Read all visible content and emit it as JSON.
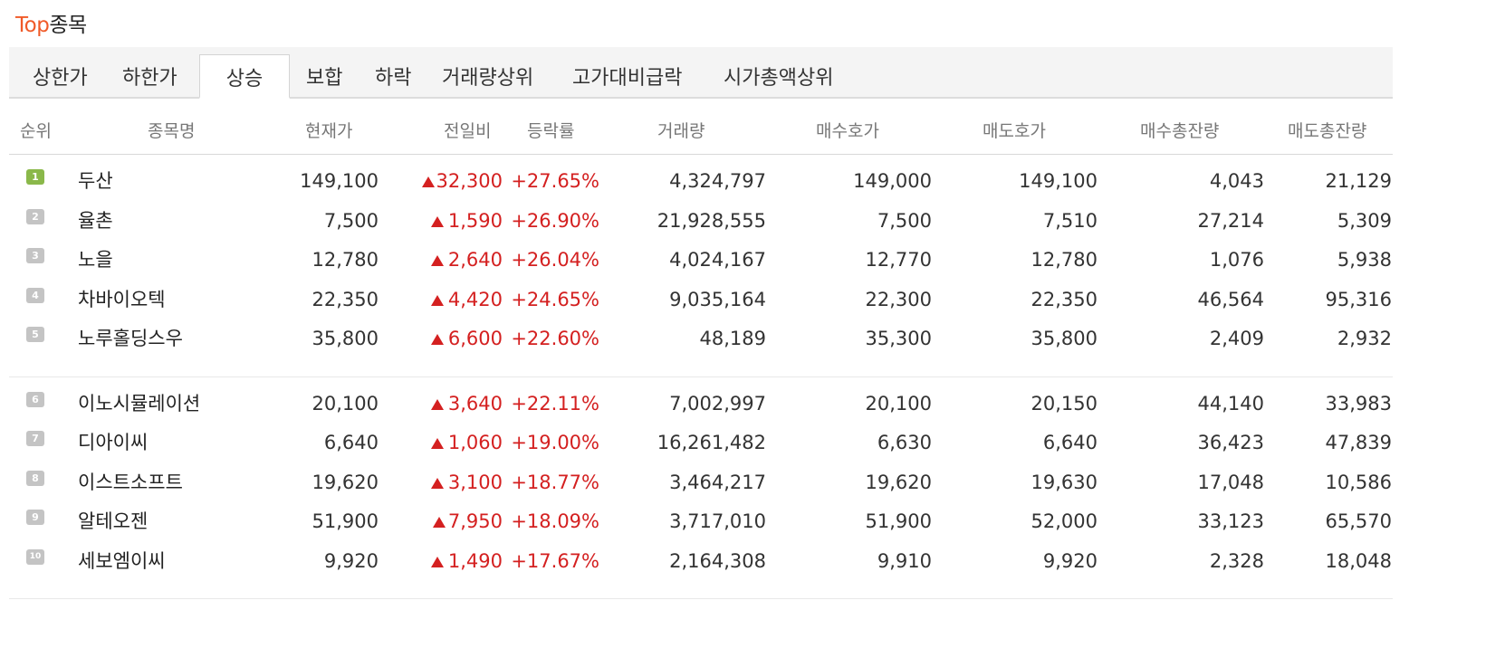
{
  "title": {
    "accent": "Top",
    "rest": "종목"
  },
  "tabs": [
    {
      "label": "상한가",
      "active": false
    },
    {
      "label": "하한가",
      "active": false
    },
    {
      "label": "상승",
      "active": true
    },
    {
      "label": "보합",
      "active": false
    },
    {
      "label": "하락",
      "active": false
    },
    {
      "label": "거래량상위",
      "active": false
    },
    {
      "label": "고가대비급락",
      "active": false
    },
    {
      "label": "시가총액상위",
      "active": false
    }
  ],
  "columns": {
    "rank": "순위",
    "name": "종목명",
    "price": "현재가",
    "change": "전일비",
    "rate": "등락률",
    "volume": "거래량",
    "bid": "매수호가",
    "ask": "매도호가",
    "bid_total": "매수총잔량",
    "ask_total": "매도총잔량"
  },
  "colors": {
    "accent": "#f05a28",
    "up": "#d42020",
    "rank1_badge": "#8ab84a",
    "rank_badge": "#c4c4c4"
  },
  "rows": [
    {
      "rank": "1",
      "name": "두산",
      "price": "149,100",
      "change": "32,300",
      "rate": "+27.65%",
      "volume": "4,324,797",
      "bid": "149,000",
      "ask": "149,100",
      "bid_total": "4,043",
      "ask_total": "21,129"
    },
    {
      "rank": "2",
      "name": "율촌",
      "price": "7,500",
      "change": "1,590",
      "rate": "+26.90%",
      "volume": "21,928,555",
      "bid": "7,500",
      "ask": "7,510",
      "bid_total": "27,214",
      "ask_total": "5,309"
    },
    {
      "rank": "3",
      "name": "노을",
      "price": "12,780",
      "change": "2,640",
      "rate": "+26.04%",
      "volume": "4,024,167",
      "bid": "12,770",
      "ask": "12,780",
      "bid_total": "1,076",
      "ask_total": "5,938"
    },
    {
      "rank": "4",
      "name": "차바이오텍",
      "price": "22,350",
      "change": "4,420",
      "rate": "+24.65%",
      "volume": "9,035,164",
      "bid": "22,300",
      "ask": "22,350",
      "bid_total": "46,564",
      "ask_total": "95,316"
    },
    {
      "rank": "5",
      "name": "노루홀딩스우",
      "price": "35,800",
      "change": "6,600",
      "rate": "+22.60%",
      "volume": "48,189",
      "bid": "35,300",
      "ask": "35,800",
      "bid_total": "2,409",
      "ask_total": "2,932"
    },
    {
      "rank": "6",
      "name": "이노시뮬레이션",
      "price": "20,100",
      "change": "3,640",
      "rate": "+22.11%",
      "volume": "7,002,997",
      "bid": "20,100",
      "ask": "20,150",
      "bid_total": "44,140",
      "ask_total": "33,983"
    },
    {
      "rank": "7",
      "name": "디아이씨",
      "price": "6,640",
      "change": "1,060",
      "rate": "+19.00%",
      "volume": "16,261,482",
      "bid": "6,630",
      "ask": "6,640",
      "bid_total": "36,423",
      "ask_total": "47,839"
    },
    {
      "rank": "8",
      "name": "이스트소프트",
      "price": "19,620",
      "change": "3,100",
      "rate": "+18.77%",
      "volume": "3,464,217",
      "bid": "19,620",
      "ask": "19,630",
      "bid_total": "17,048",
      "ask_total": "10,586"
    },
    {
      "rank": "9",
      "name": "알테오젠",
      "price": "51,900",
      "change": "7,950",
      "rate": "+18.09%",
      "volume": "3,717,010",
      "bid": "51,900",
      "ask": "52,000",
      "bid_total": "33,123",
      "ask_total": "65,570"
    },
    {
      "rank": "10",
      "name": "세보엠이씨",
      "price": "9,920",
      "change": "1,490",
      "rate": "+17.67%",
      "volume": "2,164,308",
      "bid": "9,910",
      "ask": "9,920",
      "bid_total": "2,328",
      "ask_total": "18,048"
    }
  ]
}
